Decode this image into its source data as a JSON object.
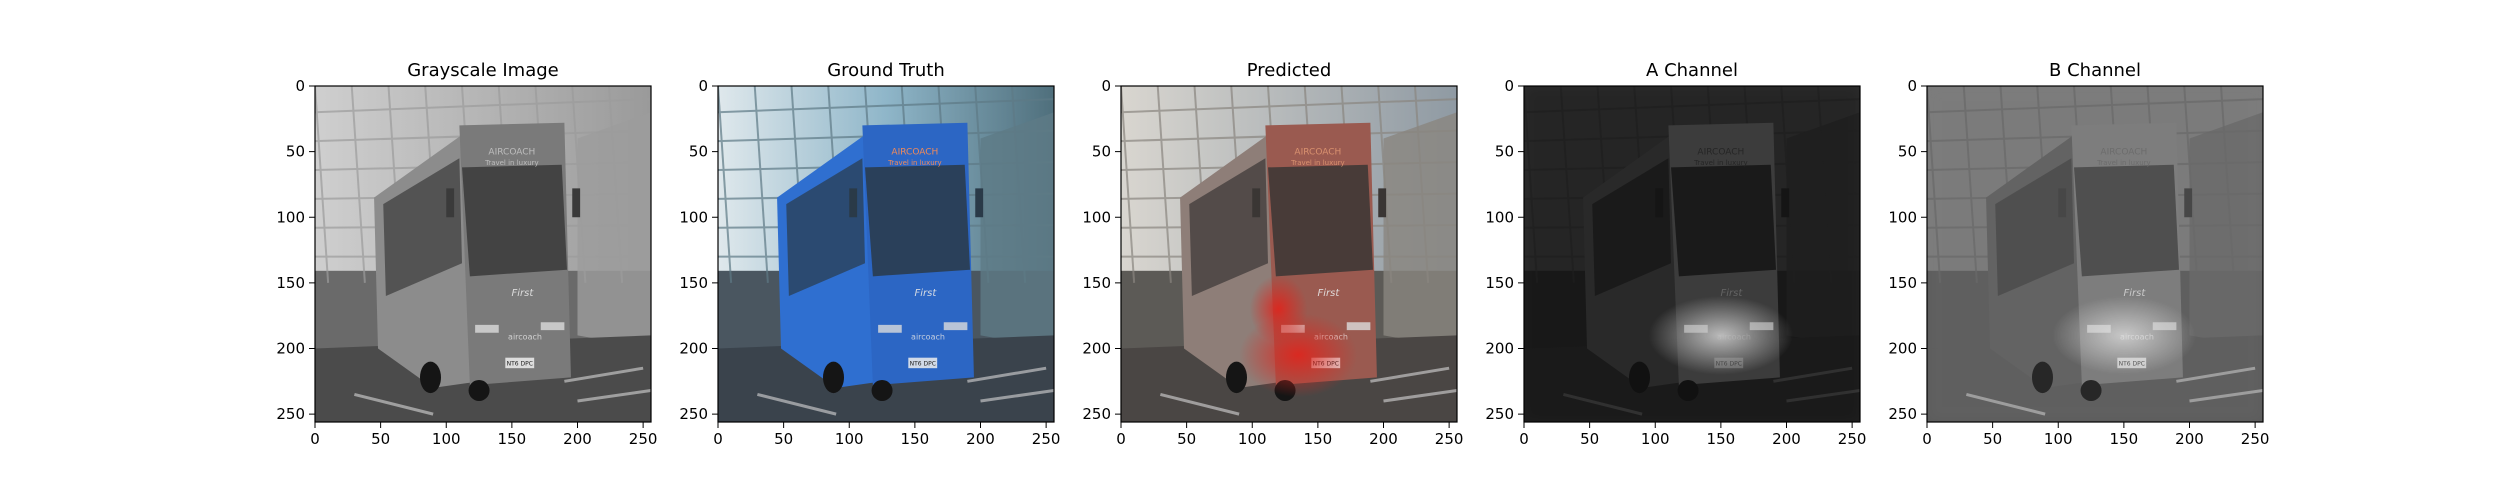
{
  "figure": {
    "panels": [
      {
        "id": "grayscale",
        "title": "Grayscale Image",
        "mode": "gray"
      },
      {
        "id": "ground-truth",
        "title": "Ground Truth",
        "mode": "truth"
      },
      {
        "id": "predicted",
        "title": "Predicted",
        "mode": "pred"
      },
      {
        "id": "a-channel",
        "title": "A Channel",
        "mode": "achannel"
      },
      {
        "id": "b-channel",
        "title": "B Channel",
        "mode": "bchannel"
      }
    ],
    "x_ticks": [
      "0",
      "50",
      "100",
      "150",
      "200",
      "250"
    ],
    "y_ticks": [
      "0",
      "50",
      "100",
      "150",
      "200",
      "250"
    ],
    "image_size": 256,
    "bus_signage": {
      "destination": "AIRCOACH",
      "line2": "Travel in luxury",
      "brand": "First",
      "side_logo": "aircoach",
      "plate": "NT6 DPC"
    },
    "colors": {
      "bus_truth": "#2f6fd0",
      "bus_pred_red": "#c8312a",
      "sky": "#8fb6c9"
    }
  }
}
